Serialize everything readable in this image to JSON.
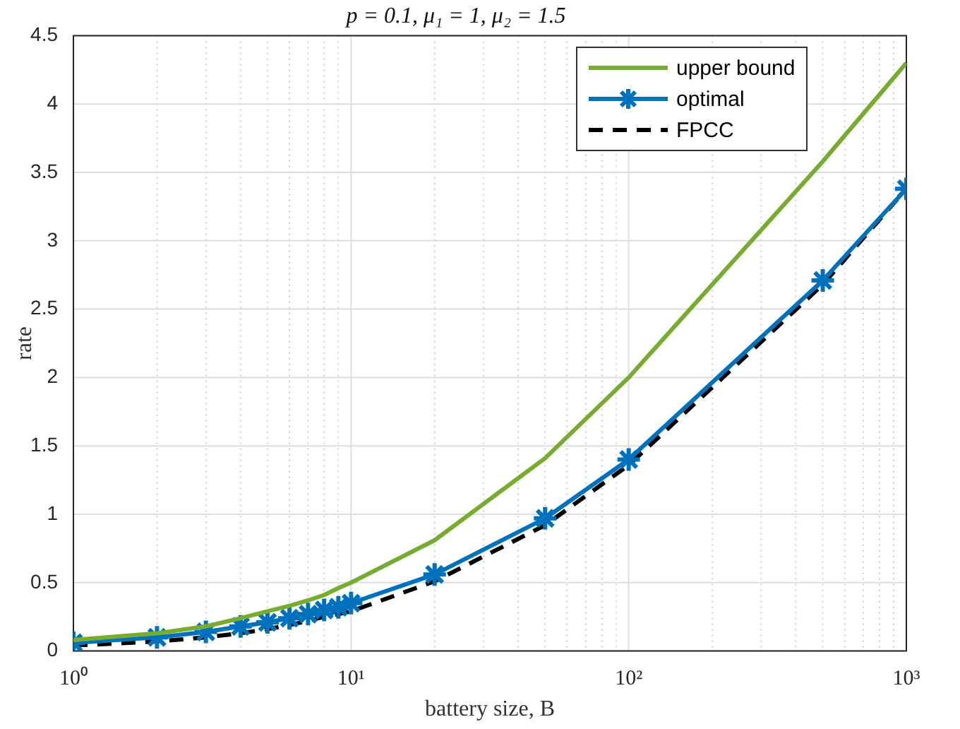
{
  "chart_data": {
    "type": "line",
    "title": "p = 0.1, μ₁ = 1, μ₂ = 1.5",
    "xlabel": "battery size, B",
    "ylabel": "rate",
    "x": [
      1,
      2,
      3,
      4,
      5,
      6,
      7,
      8,
      9,
      10,
      20,
      50,
      100,
      500,
      1000
    ],
    "series": [
      {
        "name": "upper bound",
        "color": "#77ac30",
        "marker": "none",
        "line_style": "solid",
        "values": [
          0.08,
          0.13,
          0.18,
          0.24,
          0.29,
          0.33,
          0.37,
          0.41,
          0.46,
          0.5,
          0.81,
          1.41,
          2.0,
          3.58,
          4.3
        ]
      },
      {
        "name": "optimal",
        "color": "#0072bd",
        "marker": "cross",
        "line_style": "solid",
        "values": [
          0.06,
          0.1,
          0.14,
          0.18,
          0.21,
          0.24,
          0.27,
          0.3,
          0.32,
          0.35,
          0.56,
          0.97,
          1.4,
          2.71,
          3.38
        ]
      },
      {
        "name": "FPCC",
        "color": "#000000",
        "marker": "none",
        "line_style": "dashed",
        "values": [
          0.04,
          0.07,
          0.1,
          0.13,
          0.16,
          0.19,
          0.22,
          0.25,
          0.27,
          0.29,
          0.51,
          0.92,
          1.36,
          2.68,
          3.38
        ]
      }
    ],
    "log": "x",
    "xlim": [
      1,
      1000
    ],
    "xticks": [
      {
        "value": 1,
        "label": "10⁰"
      },
      {
        "value": 10,
        "label": "10¹"
      },
      {
        "value": 100,
        "label": "10²"
      },
      {
        "value": 1000,
        "label": "10³"
      }
    ],
    "ylim": [
      0,
      4.5
    ],
    "yticks": [
      0,
      0.5,
      1,
      1.5,
      2,
      2.5,
      3,
      3.5,
      4,
      4.5
    ],
    "grid": true,
    "legend": "top right"
  }
}
